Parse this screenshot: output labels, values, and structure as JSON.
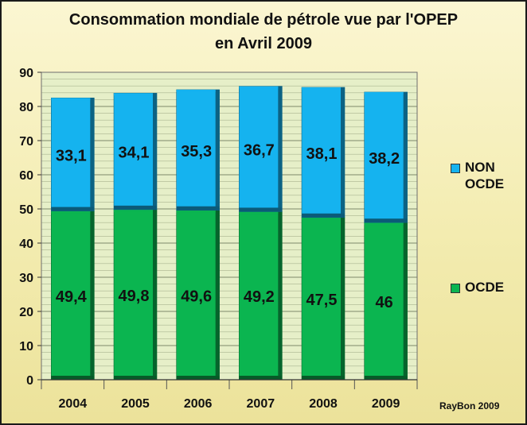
{
  "chart_data": {
    "type": "bar",
    "stacked": true,
    "title_lines": [
      "Consommation mondiale de pétrole vue par l'OPEP",
      "en Avril 2009"
    ],
    "categories": [
      "2004",
      "2005",
      "2006",
      "2007",
      "2008",
      "2009"
    ],
    "series": [
      {
        "name": "OCDE",
        "color": "#0bb550",
        "values": [
          49.4,
          49.8,
          49.6,
          49.2,
          47.5,
          46
        ]
      },
      {
        "name": "NON OCDE",
        "color": "#15b3ef",
        "values": [
          33.1,
          34.1,
          35.3,
          36.7,
          38.1,
          38.2
        ]
      }
    ],
    "value_labels": {
      "OCDE": [
        "49,4",
        "49,8",
        "49,6",
        "49,2",
        "47,5",
        "46"
      ],
      "NON OCDE": [
        "33,1",
        "34,1",
        "35,3",
        "36,7",
        "38,1",
        "38,2"
      ]
    },
    "ylim": [
      0,
      90
    ],
    "yticks": [
      0,
      10,
      20,
      30,
      40,
      50,
      60,
      70,
      80,
      90
    ],
    "grid": true,
    "legend": [
      {
        "series": "NON OCDE",
        "lines": [
          "NON",
          "OCDE"
        ]
      },
      {
        "series": "OCDE",
        "lines": [
          "OCDE"
        ]
      }
    ],
    "legend_position": "right",
    "credit": "RayBon 2009"
  }
}
